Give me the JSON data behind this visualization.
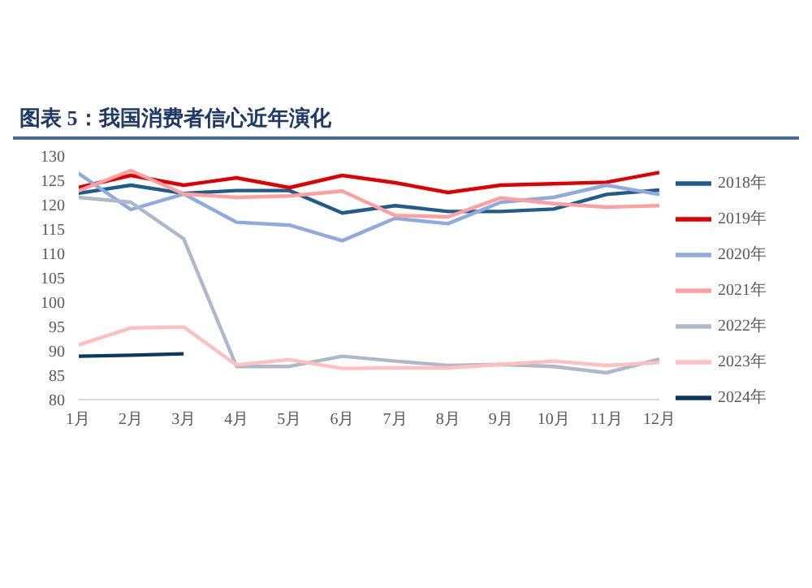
{
  "chart_data": {
    "type": "line",
    "title": "图表 5：我国消费者信心近年演化",
    "categories": [
      "1月",
      "2月",
      "3月",
      "4月",
      "5月",
      "6月",
      "7月",
      "8月",
      "9月",
      "10月",
      "11月",
      "12月"
    ],
    "series": [
      {
        "name": "2018年",
        "color": "#1f5c8b",
        "values": [
          122.3,
          124.0,
          122.3,
          122.9,
          122.9,
          118.3,
          119.8,
          118.6,
          118.6,
          119.1,
          122.1,
          123.0
        ]
      },
      {
        "name": "2019年",
        "color": "#e00000",
        "values": [
          123.5,
          126.0,
          124.0,
          125.5,
          123.5,
          126.0,
          124.5,
          122.5,
          124.0,
          124.3,
          124.6,
          126.6
        ]
      },
      {
        "name": "2020年",
        "color": "#8faadc",
        "values": [
          126.5,
          119.0,
          122.2,
          116.4,
          115.8,
          112.6,
          117.2,
          116.1,
          120.5,
          121.5,
          124.0,
          122.1
        ]
      },
      {
        "name": "2021年",
        "color": "#ff9f9f",
        "values": [
          122.8,
          127.0,
          122.2,
          121.5,
          121.8,
          122.8,
          117.8,
          117.5,
          121.4,
          120.2,
          119.5,
          119.8
        ]
      },
      {
        "name": "2022年",
        "color": "#adb9ca",
        "values": [
          121.5,
          120.5,
          113.0,
          86.8,
          86.8,
          88.9,
          87.9,
          87.0,
          87.2,
          86.8,
          85.5,
          88.3
        ]
      },
      {
        "name": "2023年",
        "color": "#ffbfbf",
        "values": [
          91.2,
          94.7,
          94.9,
          87.1,
          88.2,
          86.4,
          86.5,
          86.5,
          87.2,
          87.9,
          87.0,
          87.6
        ]
      },
      {
        "name": "2024年",
        "color": "#0b3a5c",
        "values": [
          88.9,
          89.1,
          89.4,
          null,
          null,
          null,
          null,
          null,
          null,
          null,
          null,
          null
        ]
      }
    ],
    "ylim": [
      80,
      130
    ],
    "yticks": [
      80,
      85,
      90,
      95,
      100,
      105,
      110,
      115,
      120,
      125,
      130
    ],
    "grid": false,
    "legend": "right",
    "marker": "none",
    "line_style": "solid"
  }
}
